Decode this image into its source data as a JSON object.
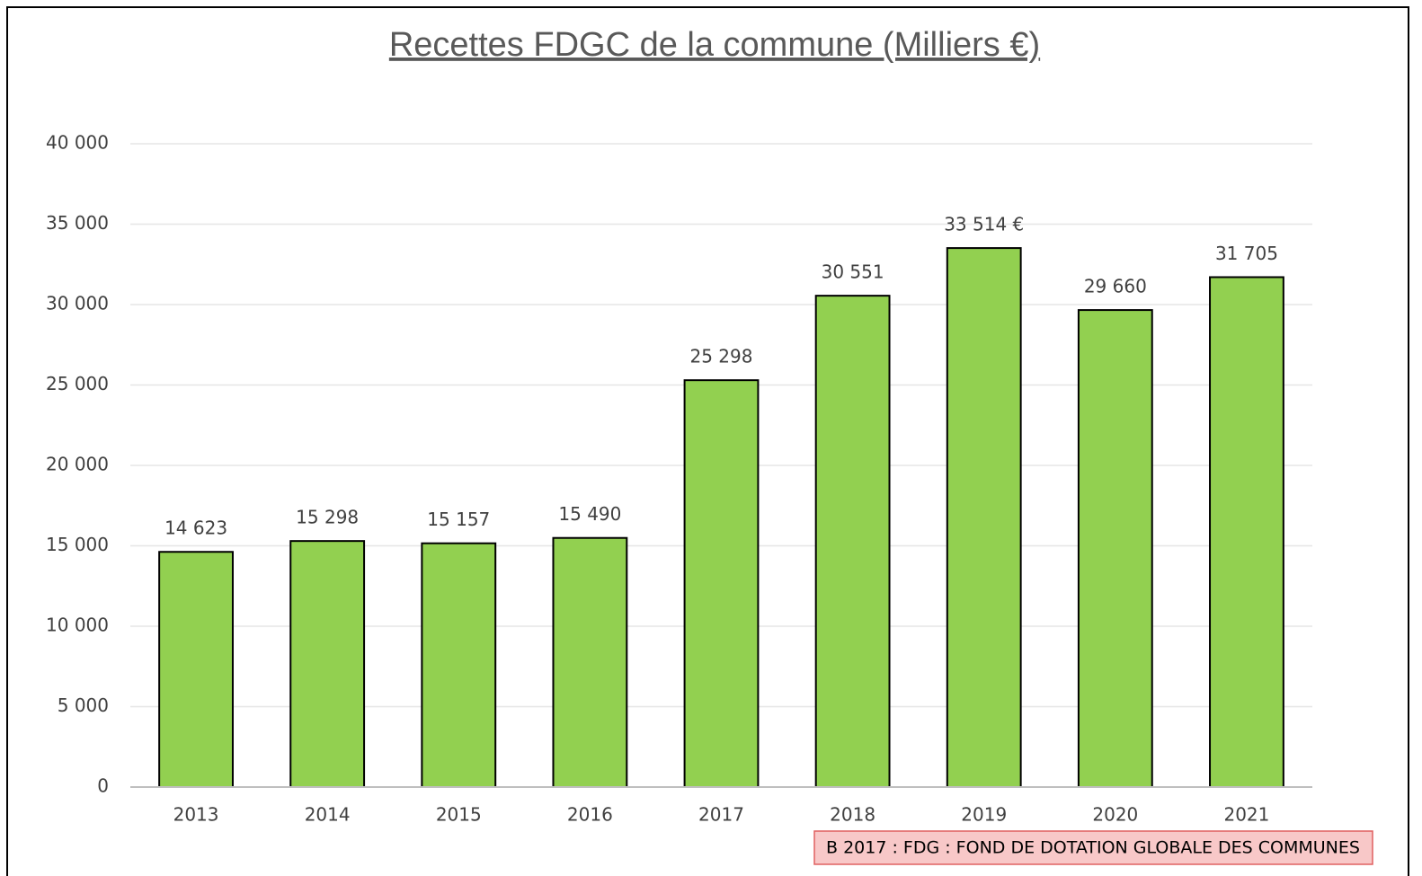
{
  "chart_data": {
    "type": "bar",
    "title": "Recettes FDGC de la commune (Milliers €)",
    "categories": [
      "2013",
      "2014",
      "2015",
      "2016",
      "2017",
      "2018",
      "2019",
      "2020",
      "2021"
    ],
    "values": [
      14623,
      15298,
      15157,
      15490,
      25298,
      30551,
      33514,
      29660,
      31705
    ],
    "value_labels": [
      "14 623",
      "15 298",
      "15 157",
      "15 490",
      "25 298",
      "30 551",
      "33 514 €",
      "29 660",
      "31 705"
    ],
    "color": "#92d050",
    "ylim": [
      0,
      40000
    ],
    "yticks": [
      0,
      {
        "value": 5000,
        "label": "5 000"
      },
      {
        "value": 10000,
        "label": "10 000"
      },
      {
        "value": 15000,
        "label": "15 000"
      },
      {
        "value": 20000,
        "label": "20 000"
      },
      {
        "value": 25000,
        "label": "25 000"
      },
      {
        "value": 30000,
        "label": "30 000"
      },
      {
        "value": 35000,
        "label": "35 000"
      },
      {
        "value": 40000,
        "label": "40 000"
      }
    ],
    "grid": true,
    "annotation": "B 2017 : FDG : FOND DE DOTATION GLOBALE DES COMMUNES"
  }
}
